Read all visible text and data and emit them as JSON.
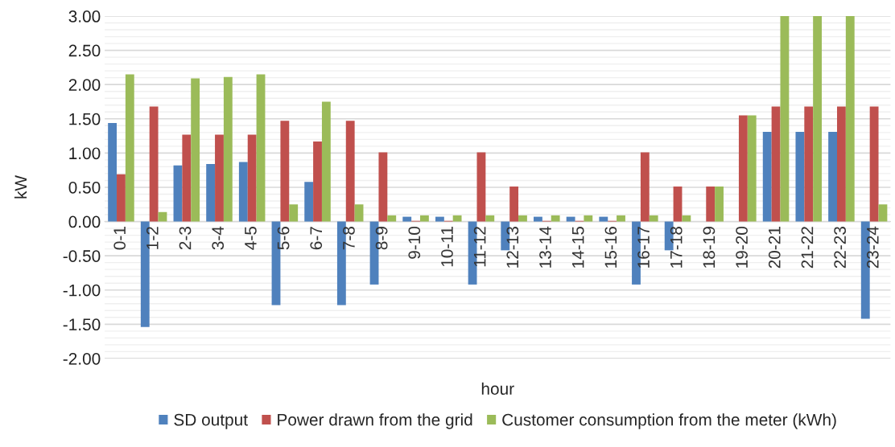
{
  "chart_data": {
    "type": "bar",
    "xlabel": "hour",
    "ylabel": "kW",
    "categories": [
      "0-1",
      "1-2",
      "2-3",
      "3-4",
      "4-5",
      "5-6",
      "6-7",
      "7-8",
      "8-9",
      "9-10",
      "10-11",
      "11-12",
      "12-13",
      "13-14",
      "14-15",
      "15-16",
      "16-17",
      "17-18",
      "18-19",
      "19-20",
      "20-21",
      "21-22",
      "22-23",
      "23-24"
    ],
    "series": [
      {
        "name": "SD output",
        "color": "#4f81bd",
        "values": [
          1.44,
          -1.54,
          0.82,
          0.84,
          0.87,
          -1.22,
          0.58,
          -1.22,
          -0.92,
          0.07,
          0.07,
          -0.92,
          -0.42,
          0.07,
          0.07,
          0.07,
          -0.92,
          -0.42,
          null,
          null,
          1.31,
          1.31,
          1.31,
          -1.42
        ]
      },
      {
        "name": "Power drawn from the grid",
        "color": "#c0504d",
        "values": [
          0.69,
          1.68,
          1.27,
          1.27,
          1.27,
          1.47,
          1.17,
          1.47,
          1.01,
          0.01,
          0.01,
          1.01,
          0.51,
          0.01,
          0.01,
          0.01,
          1.01,
          0.51,
          0.51,
          1.55,
          1.68,
          1.68,
          1.68,
          1.68
        ]
      },
      {
        "name": "Customer consumption from the meter (kWh)",
        "color": "#9bbb59",
        "values": [
          2.15,
          0.14,
          2.09,
          2.11,
          2.15,
          0.25,
          1.75,
          0.25,
          0.09,
          0.09,
          0.09,
          0.09,
          0.09,
          0.09,
          0.09,
          0.09,
          0.09,
          0.09,
          0.51,
          1.55,
          3.0,
          3.0,
          3.0,
          0.25
        ]
      }
    ],
    "ylim": [
      -2.0,
      3.0
    ],
    "yticks": [
      {
        "value": -2.0,
        "label": "-2.00"
      },
      {
        "value": -1.5,
        "label": "-1.50"
      },
      {
        "value": -1.0,
        "label": "-1.00"
      },
      {
        "value": -0.5,
        "label": "-0.50"
      },
      {
        "value": 0.0,
        "label": "0.00"
      },
      {
        "value": 0.5,
        "label": "0.50"
      },
      {
        "value": 1.0,
        "label": "1.00"
      },
      {
        "value": 1.5,
        "label": "1.50"
      },
      {
        "value": 2.0,
        "label": "2.00"
      },
      {
        "value": 2.5,
        "label": "2.50"
      },
      {
        "value": 3.0,
        "label": "3.00"
      }
    ],
    "grid": "y",
    "legend": "bottom"
  }
}
